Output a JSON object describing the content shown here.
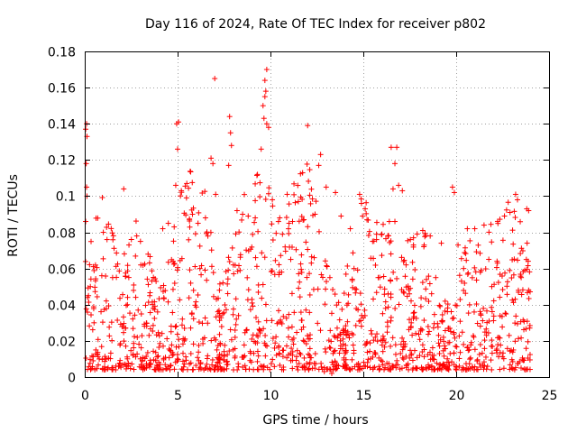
{
  "chart_data": {
    "type": "scatter",
    "title": "Day 116 of 2024, Rate Of TEC Index for receiver p802",
    "xlabel": "GPS time / hours",
    "ylabel": "ROTI / TECUs",
    "xlim": [
      0,
      25
    ],
    "ylim": [
      0,
      0.18
    ],
    "xticks": [
      0,
      5,
      10,
      15,
      20,
      25
    ],
    "xtick_labels": [
      "0",
      "5",
      "10",
      "15",
      "20",
      "25"
    ],
    "yticks": [
      0,
      0.02,
      0.04,
      0.06,
      0.08,
      0.1,
      0.12,
      0.14,
      0.16,
      0.18
    ],
    "ytick_labels": [
      "0",
      "0.02",
      "0.04",
      "0.06",
      "0.08",
      "0.1",
      "0.12",
      "0.14",
      "0.16",
      "0.18"
    ],
    "grid": true,
    "marker": "+",
    "color": "#ff0000",
    "series": [
      {
        "name": "ROTI",
        "points": [
          [
            0.05,
            0.137
          ],
          [
            0.1,
            0.14
          ],
          [
            0.12,
            0.133
          ],
          [
            0.08,
            0.118
          ],
          [
            0.1,
            0.105
          ],
          [
            0.05,
            0.086
          ],
          [
            0.12,
            0.1
          ],
          [
            2.1,
            0.104
          ],
          [
            4.95,
            0.14
          ],
          [
            5.05,
            0.141
          ],
          [
            5.0,
            0.126
          ],
          [
            4.9,
            0.106
          ],
          [
            5.2,
            0.103
          ],
          [
            6.8,
            0.121
          ],
          [
            6.9,
            0.118
          ],
          [
            7.0,
            0.165
          ],
          [
            7.05,
            0.101
          ],
          [
            7.8,
            0.144
          ],
          [
            7.85,
            0.135
          ],
          [
            7.9,
            0.128
          ],
          [
            7.75,
            0.117
          ],
          [
            9.6,
            0.15
          ],
          [
            9.7,
            0.155
          ],
          [
            9.75,
            0.158
          ],
          [
            9.8,
            0.17
          ],
          [
            9.7,
            0.164
          ],
          [
            9.65,
            0.143
          ],
          [
            9.8,
            0.14
          ],
          [
            9.5,
            0.126
          ],
          [
            9.9,
            0.138
          ],
          [
            9.3,
            0.112
          ],
          [
            10.1,
            0.098
          ],
          [
            10.9,
            0.101
          ],
          [
            11.5,
            0.097
          ],
          [
            12.0,
            0.139
          ],
          [
            12.7,
            0.123
          ],
          [
            12.6,
            0.117
          ],
          [
            13.0,
            0.105
          ],
          [
            13.5,
            0.102
          ],
          [
            14.8,
            0.101
          ],
          [
            14.9,
            0.096
          ],
          [
            15.1,
            0.093
          ],
          [
            16.5,
            0.127
          ],
          [
            16.8,
            0.127
          ],
          [
            16.7,
            0.118
          ],
          [
            16.6,
            0.104
          ],
          [
            16.9,
            0.106
          ],
          [
            17.1,
            0.103
          ],
          [
            16.4,
            0.086
          ],
          [
            16.7,
            0.086
          ],
          [
            19.8,
            0.105
          ],
          [
            19.9,
            0.102
          ],
          [
            23.2,
            0.101
          ],
          [
            23.3,
            0.098
          ],
          [
            23.8,
            0.093
          ],
          [
            23.9,
            0.092
          ],
          [
            22.9,
            0.091
          ],
          [
            22.6,
            0.089
          ],
          [
            21.5,
            0.084
          ],
          [
            20.6,
            0.082
          ],
          [
            18.2,
            0.081
          ],
          [
            17.7,
            0.073
          ],
          [
            18.6,
            0.078
          ],
          [
            19.2,
            0.074
          ],
          [
            20.1,
            0.073
          ],
          [
            21.0,
            0.082
          ],
          [
            1.0,
            0.08
          ],
          [
            1.2,
            0.076
          ],
          [
            2.8,
            0.078
          ],
          [
            3.0,
            0.075
          ],
          [
            4.2,
            0.082
          ],
          [
            4.5,
            0.085
          ],
          [
            5.8,
            0.09
          ],
          [
            6.1,
            0.085
          ],
          [
            6.5,
            0.088
          ],
          [
            8.2,
            0.092
          ],
          [
            8.5,
            0.09
          ],
          [
            8.8,
            0.089
          ],
          [
            10.5,
            0.088
          ],
          [
            11.0,
            0.085
          ],
          [
            11.8,
            0.087
          ],
          [
            12.4,
            0.09
          ],
          [
            13.8,
            0.089
          ],
          [
            14.3,
            0.082
          ],
          [
            15.5,
            0.075
          ],
          [
            16.0,
            0.079
          ],
          [
            0.2,
            0.045
          ],
          [
            0.3,
            0.05
          ],
          [
            0.5,
            0.03
          ],
          [
            1.5,
            0.055
          ],
          [
            2.3,
            0.04
          ],
          [
            3.5,
            0.045
          ],
          [
            6.2,
            0.06
          ],
          [
            8.0,
            0.062
          ],
          [
            9.2,
            0.066
          ],
          [
            10.6,
            0.058
          ],
          [
            12.2,
            0.063
          ],
          [
            13.2,
            0.055
          ],
          [
            14.5,
            0.06
          ],
          [
            15.8,
            0.055
          ],
          [
            17.3,
            0.062
          ],
          [
            18.9,
            0.055
          ],
          [
            20.4,
            0.06
          ],
          [
            21.3,
            0.058
          ],
          [
            22.2,
            0.064
          ],
          [
            23.5,
            0.055
          ],
          [
            23.9,
            0.048
          ],
          [
            0.6,
            0.015
          ],
          [
            2.6,
            0.012
          ],
          [
            7.3,
            0.018
          ],
          [
            11.2,
            0.014
          ],
          [
            13.3,
            0.002
          ],
          [
            17.0,
            0.013
          ],
          [
            18.8,
            0.012
          ],
          [
            19.6,
            0.004
          ],
          [
            21.6,
            0.011
          ],
          [
            23.7,
            0.004
          ],
          [
            12.9,
            0.003
          ],
          [
            4.0,
            0.005
          ]
        ]
      }
    ]
  }
}
